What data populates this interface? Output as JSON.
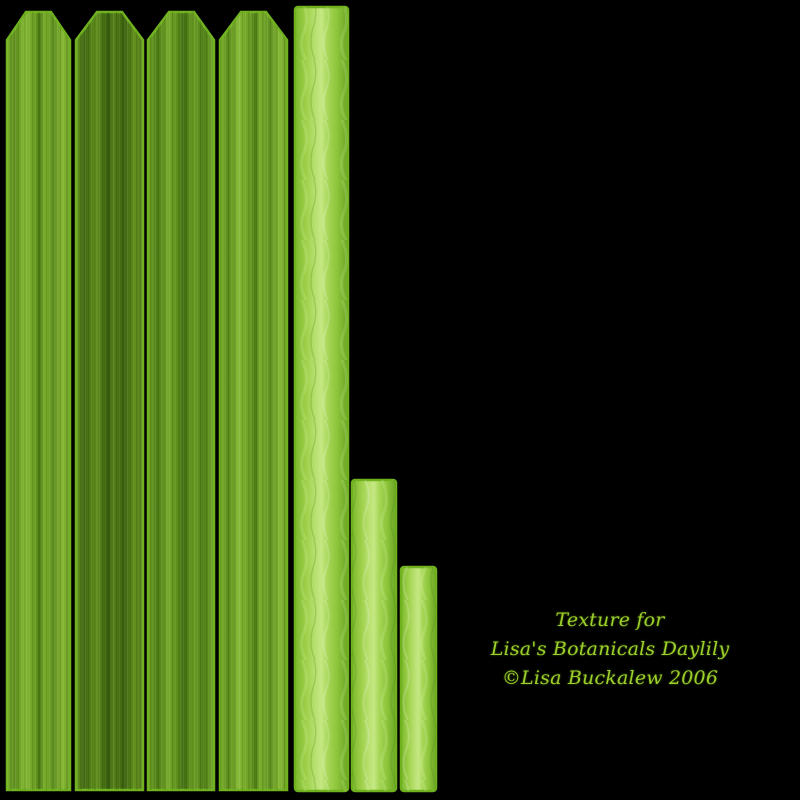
{
  "colors": {
    "background": "#000000",
    "leaf_dark": "#3f6a12",
    "leaf_mid": "#5d8e1c",
    "leaf_light": "#8cc23a",
    "strip_light": "#a8d860",
    "border": "#6fb21e",
    "credit_text": "#9ccf2c"
  },
  "textures": {
    "pointed_leaves": [
      {
        "name": "leaf-texture-1",
        "tone": "light"
      },
      {
        "name": "leaf-texture-2",
        "tone": "dark"
      },
      {
        "name": "leaf-texture-3",
        "tone": "mid"
      },
      {
        "name": "leaf-texture-4",
        "tone": "light"
      }
    ],
    "strips": [
      {
        "name": "strip-texture-tall"
      },
      {
        "name": "strip-texture-medium"
      },
      {
        "name": "strip-texture-short"
      }
    ]
  },
  "credit": {
    "line1": "Texture for",
    "line2": "Lisa's Botanicals Daylily",
    "line3": "©Lisa Buckalew 2006"
  }
}
